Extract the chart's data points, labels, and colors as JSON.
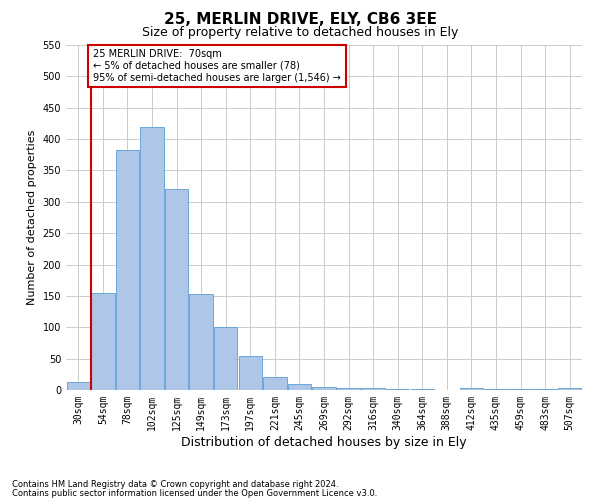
{
  "title": "25, MERLIN DRIVE, ELY, CB6 3EE",
  "subtitle": "Size of property relative to detached houses in Ely",
  "xlabel": "Distribution of detached houses by size in Ely",
  "ylabel": "Number of detached properties",
  "categories": [
    "30sqm",
    "54sqm",
    "78sqm",
    "102sqm",
    "125sqm",
    "149sqm",
    "173sqm",
    "197sqm",
    "221sqm",
    "245sqm",
    "269sqm",
    "292sqm",
    "316sqm",
    "340sqm",
    "364sqm",
    "388sqm",
    "412sqm",
    "435sqm",
    "459sqm",
    "483sqm",
    "507sqm"
  ],
  "values": [
    12,
    155,
    383,
    420,
    320,
    153,
    100,
    55,
    20,
    10,
    5,
    3,
    3,
    2,
    1,
    0,
    3,
    1,
    1,
    1,
    3
  ],
  "bar_color": "#aec6e8",
  "bar_edgecolor": "#5a9fd4",
  "highlight_line_color": "#cc0000",
  "annotation_text": "25 MERLIN DRIVE:  70sqm\n← 5% of detached houses are smaller (78)\n95% of semi-detached houses are larger (1,546) →",
  "annotation_box_color": "#ffffff",
  "annotation_box_edgecolor": "#cc0000",
  "ylim": [
    0,
    550
  ],
  "yticks": [
    0,
    50,
    100,
    150,
    200,
    250,
    300,
    350,
    400,
    450,
    500,
    550
  ],
  "footer_line1": "Contains HM Land Registry data © Crown copyright and database right 2024.",
  "footer_line2": "Contains public sector information licensed under the Open Government Licence v3.0.",
  "bg_color": "#ffffff",
  "grid_color": "#cccccc",
  "title_fontsize": 11,
  "subtitle_fontsize": 9,
  "xlabel_fontsize": 9,
  "ylabel_fontsize": 8,
  "tick_fontsize": 7,
  "footer_fontsize": 6,
  "annot_fontsize": 7
}
